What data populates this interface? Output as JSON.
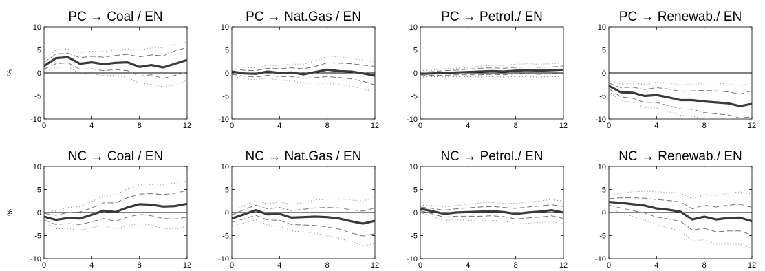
{
  "figure": {
    "ylabel_text": "%"
  },
  "colors": {
    "median": "#3a3a3a",
    "band_inner": "#707070",
    "band_outer": "#808080",
    "zero_line": "#000000",
    "frame": "#000000"
  },
  "chart_data": [
    {
      "type": "line",
      "title": "PC → Coal / EN",
      "xlabel": "",
      "ylabel": "%",
      "xlim": [
        0,
        12
      ],
      "ylim": [
        -10,
        10
      ],
      "xticks": [
        0,
        4,
        8,
        12
      ],
      "yticks": [
        -10,
        -5,
        0,
        5,
        10
      ],
      "x": [
        0,
        1,
        2,
        3,
        4,
        5,
        6,
        7,
        8,
        9,
        10,
        11,
        12
      ],
      "median": [
        1.5,
        3.2,
        3.4,
        2.0,
        2.3,
        1.9,
        2.2,
        2.3,
        1.3,
        1.7,
        1.2,
        2.0,
        2.8
      ],
      "inner_upper": [
        2.3,
        4.1,
        4.3,
        3.3,
        3.6,
        3.4,
        3.8,
        4.0,
        3.5,
        3.9,
        3.7,
        4.8,
        5.5
      ],
      "inner_lower": [
        0.8,
        2.0,
        2.2,
        0.8,
        0.9,
        0.5,
        0.7,
        0.5,
        -0.7,
        -0.4,
        -1.2,
        -0.5,
        0.3
      ],
      "outer_upper": [
        2.9,
        5.0,
        5.2,
        4.4,
        4.7,
        4.6,
        5.0,
        5.2,
        5.0,
        5.4,
        5.5,
        6.2,
        6.7
      ],
      "outer_lower": [
        0.2,
        1.2,
        1.3,
        -0.1,
        -0.2,
        -0.6,
        -0.5,
        -1.0,
        -2.2,
        -2.5,
        -3.0,
        -2.6,
        -1.6
      ]
    },
    {
      "type": "line",
      "title": "PC → Nat.Gas / EN",
      "xlabel": "",
      "ylabel": "",
      "xlim": [
        0,
        12
      ],
      "ylim": [
        -10,
        10
      ],
      "xticks": [
        0,
        4,
        8,
        12
      ],
      "yticks": [
        -10,
        -5,
        0,
        5,
        10
      ],
      "x": [
        0,
        1,
        2,
        3,
        4,
        5,
        6,
        7,
        8,
        9,
        10,
        11,
        12
      ],
      "median": [
        0.3,
        -0.1,
        -0.2,
        0.3,
        0.0,
        0.1,
        -0.3,
        0.2,
        0.7,
        0.4,
        0.3,
        -0.1,
        -0.6
      ],
      "inner_upper": [
        0.9,
        0.6,
        0.5,
        1.0,
        0.9,
        1.1,
        0.9,
        1.4,
        2.2,
        2.1,
        2.0,
        1.7,
        1.4
      ],
      "inner_lower": [
        -0.3,
        -0.7,
        -0.9,
        -0.5,
        -0.8,
        -0.8,
        -1.2,
        -1.0,
        -0.8,
        -1.0,
        -1.3,
        -1.8,
        -2.6
      ],
      "outer_upper": [
        1.4,
        1.2,
        1.1,
        1.6,
        1.6,
        1.9,
        1.9,
        2.6,
        3.6,
        3.5,
        3.2,
        2.7,
        2.5
      ],
      "outer_lower": [
        -0.8,
        -1.2,
        -1.5,
        -1.1,
        -1.6,
        -1.7,
        -2.2,
        -2.2,
        -2.2,
        -2.5,
        -2.9,
        -3.5,
        -4.0
      ]
    },
    {
      "type": "line",
      "title": "PC → Petrol./ EN",
      "xlabel": "",
      "ylabel": "",
      "xlim": [
        0,
        12
      ],
      "ylim": [
        -10,
        10
      ],
      "xticks": [
        0,
        4,
        8,
        12
      ],
      "yticks": [
        -10,
        -5,
        0,
        5,
        10
      ],
      "x": [
        0,
        1,
        2,
        3,
        4,
        5,
        6,
        7,
        8,
        9,
        10,
        11,
        12
      ],
      "median": [
        -0.2,
        -0.1,
        0.0,
        0.1,
        0.2,
        0.3,
        0.4,
        0.3,
        0.5,
        0.6,
        0.5,
        0.6,
        0.7
      ],
      "inner_upper": [
        0.2,
        0.3,
        0.5,
        0.6,
        0.8,
        1.0,
        1.1,
        1.0,
        1.2,
        1.3,
        1.2,
        1.3,
        1.5
      ],
      "inner_lower": [
        -0.6,
        -0.5,
        -0.5,
        -0.4,
        -0.4,
        -0.4,
        -0.3,
        -0.4,
        -0.2,
        -0.2,
        -0.3,
        -0.2,
        -0.2
      ],
      "outer_upper": [
        0.5,
        0.6,
        0.9,
        1.0,
        1.2,
        1.5,
        1.6,
        1.6,
        1.9,
        2.0,
        1.9,
        2.0,
        2.2
      ],
      "outer_lower": [
        -0.9,
        -0.8,
        -0.9,
        -0.8,
        -0.8,
        -0.9,
        -0.8,
        -0.9,
        -0.8,
        -0.8,
        -0.9,
        -0.8,
        -0.8
      ]
    },
    {
      "type": "line",
      "title": "PC → Renewab./ EN",
      "xlabel": "",
      "ylabel": "",
      "xlim": [
        0,
        12
      ],
      "ylim": [
        -10,
        10
      ],
      "xticks": [
        0,
        4,
        8,
        12
      ],
      "yticks": [
        -10,
        -5,
        0,
        5,
        10
      ],
      "x": [
        0,
        1,
        2,
        3,
        4,
        5,
        6,
        7,
        8,
        9,
        10,
        11,
        12
      ],
      "median": [
        -2.8,
        -4.2,
        -4.3,
        -5.0,
        -4.8,
        -5.3,
        -5.9,
        -5.9,
        -6.2,
        -6.4,
        -6.6,
        -7.2,
        -6.7
      ],
      "inner_upper": [
        -2.2,
        -3.2,
        -3.1,
        -3.6,
        -3.2,
        -3.5,
        -4.0,
        -3.9,
        -3.8,
        -3.9,
        -4.1,
        -4.6,
        -3.9
      ],
      "inner_lower": [
        -3.4,
        -5.2,
        -5.5,
        -6.4,
        -6.4,
        -7.1,
        -7.8,
        -7.9,
        -8.6,
        -8.9,
        -9.1,
        -9.8,
        -9.5
      ],
      "outer_upper": [
        -1.6,
        -2.4,
        -2.2,
        -2.5,
        -2.0,
        -2.2,
        -2.6,
        -2.5,
        -2.2,
        -2.2,
        -2.4,
        -2.8,
        -2.2
      ],
      "outer_lower": [
        -4.0,
        -6.0,
        -6.4,
        -7.5,
        -7.6,
        -8.4,
        -9.2,
        -9.4,
        -10.0,
        -10.0,
        -10.0,
        -10.0,
        -10.0
      ]
    },
    {
      "type": "line",
      "title": "NC → Coal / EN",
      "xlabel": "",
      "ylabel": "%",
      "xlim": [
        0,
        12
      ],
      "ylim": [
        -10,
        10
      ],
      "xticks": [
        0,
        4,
        8,
        12
      ],
      "yticks": [
        -10,
        -5,
        0,
        5,
        10
      ],
      "x": [
        0,
        1,
        2,
        3,
        4,
        5,
        6,
        7,
        8,
        9,
        10,
        11,
        12
      ],
      "median": [
        -0.9,
        -1.6,
        -1.2,
        -1.3,
        -0.5,
        0.4,
        0.1,
        1.1,
        1.8,
        1.7,
        1.3,
        1.4,
        1.9
      ],
      "inner_upper": [
        -0.2,
        -0.6,
        0.0,
        0.1,
        1.0,
        2.1,
        2.1,
        3.2,
        4.0,
        4.1,
        3.9,
        4.2,
        4.8
      ],
      "inner_lower": [
        -1.6,
        -2.6,
        -2.4,
        -2.6,
        -2.0,
        -1.3,
        -1.9,
        -1.0,
        -0.4,
        -0.7,
        -1.3,
        -1.4,
        -1.0
      ],
      "outer_upper": [
        0.4,
        0.3,
        1.1,
        1.3,
        2.4,
        3.6,
        3.9,
        5.1,
        6.0,
        6.1,
        6.1,
        6.4,
        6.8
      ],
      "outer_lower": [
        -2.2,
        -3.5,
        -3.5,
        -3.8,
        -3.3,
        -2.8,
        -3.6,
        -2.8,
        -2.4,
        -2.7,
        -3.5,
        -3.6,
        -3.0
      ]
    },
    {
      "type": "line",
      "title": "NC → Nat.Gas / EN",
      "xlabel": "",
      "ylabel": "",
      "xlim": [
        0,
        12
      ],
      "ylim": [
        -10,
        10
      ],
      "xticks": [
        0,
        4,
        8,
        12
      ],
      "yticks": [
        -10,
        -5,
        0,
        5,
        10
      ],
      "x": [
        0,
        1,
        2,
        3,
        4,
        5,
        6,
        7,
        8,
        9,
        10,
        11,
        12
      ],
      "median": [
        -1.3,
        -0.4,
        0.5,
        -0.4,
        -0.3,
        -1.1,
        -1.0,
        -0.9,
        -1.0,
        -1.3,
        -1.9,
        -2.4,
        -1.8
      ],
      "inner_upper": [
        -0.5,
        0.6,
        1.6,
        0.8,
        1.1,
        0.4,
        0.7,
        1.0,
        1.1,
        1.0,
        0.6,
        0.3,
        1.0
      ],
      "inner_lower": [
        -2.1,
        -1.4,
        -0.6,
        -1.6,
        -1.7,
        -2.6,
        -2.7,
        -2.8,
        -3.1,
        -3.6,
        -4.4,
        -5.1,
        -4.6
      ],
      "outer_upper": [
        0.2,
        1.5,
        2.6,
        1.9,
        2.3,
        1.8,
        2.2,
        2.7,
        2.9,
        3.0,
        2.7,
        2.5,
        3.3
      ],
      "outer_lower": [
        -2.8,
        -2.3,
        -1.6,
        -2.7,
        -2.9,
        -4.0,
        -4.2,
        -4.5,
        -5.0,
        -5.6,
        -6.3,
        -7.2,
        -6.8
      ]
    },
    {
      "type": "line",
      "title": "NC → Petrol./ EN",
      "xlabel": "",
      "ylabel": "",
      "xlim": [
        0,
        12
      ],
      "ylim": [
        -10,
        10
      ],
      "xticks": [
        0,
        4,
        8,
        12
      ],
      "yticks": [
        -10,
        -5,
        0,
        5,
        10
      ],
      "x": [
        0,
        1,
        2,
        3,
        4,
        5,
        6,
        7,
        8,
        9,
        10,
        11,
        12
      ],
      "median": [
        0.8,
        0.3,
        -0.3,
        0.0,
        0.1,
        0.2,
        0.3,
        0.1,
        -0.3,
        0.0,
        0.2,
        0.5,
        0.0
      ],
      "inner_upper": [
        1.2,
        0.9,
        0.5,
        0.8,
        1.0,
        1.2,
        1.3,
        1.1,
        0.9,
        1.2,
        1.4,
        1.7,
        1.3
      ],
      "inner_lower": [
        0.4,
        -0.3,
        -1.0,
        -0.8,
        -0.8,
        -0.8,
        -0.7,
        -0.9,
        -1.4,
        -1.2,
        -1.0,
        -0.7,
        -1.3
      ],
      "outer_upper": [
        1.6,
        1.5,
        1.2,
        1.5,
        1.8,
        2.1,
        2.2,
        2.0,
        2.0,
        2.3,
        2.5,
        2.8,
        2.5
      ],
      "outer_lower": [
        0.0,
        -0.9,
        -1.7,
        -1.6,
        -1.7,
        -1.8,
        -1.7,
        -1.8,
        -2.5,
        -2.3,
        -2.2,
        -1.9,
        -2.5
      ]
    },
    {
      "type": "line",
      "title": "NC → Renewab./ EN",
      "xlabel": "",
      "ylabel": "",
      "xlim": [
        0,
        12
      ],
      "ylim": [
        -10,
        10
      ],
      "xticks": [
        0,
        4,
        8,
        12
      ],
      "yticks": [
        -10,
        -5,
        0,
        5,
        10
      ],
      "x": [
        0,
        1,
        2,
        3,
        4,
        5,
        6,
        7,
        8,
        9,
        10,
        11,
        12
      ],
      "median": [
        2.3,
        2.1,
        1.8,
        1.5,
        0.9,
        0.6,
        0.2,
        -1.5,
        -0.9,
        -1.5,
        -1.2,
        -1.1,
        -1.9
      ],
      "inner_upper": [
        3.0,
        3.2,
        3.2,
        3.1,
        2.8,
        2.6,
        2.3,
        0.8,
        1.6,
        1.2,
        1.6,
        1.8,
        1.1
      ],
      "inner_lower": [
        1.6,
        1.0,
        0.4,
        -0.1,
        -1.0,
        -1.4,
        -1.9,
        -3.8,
        -3.4,
        -4.2,
        -4.0,
        -4.0,
        -4.9
      ],
      "outer_upper": [
        3.7,
        4.2,
        4.5,
        4.6,
        4.5,
        4.4,
        4.2,
        3.0,
        3.9,
        3.7,
        4.2,
        4.5,
        4.0
      ],
      "outer_lower": [
        0.9,
        0.0,
        -0.9,
        -1.6,
        -2.7,
        -3.3,
        -4.0,
        -6.1,
        -5.9,
        -6.9,
        -6.8,
        -6.9,
        -7.8
      ]
    }
  ]
}
